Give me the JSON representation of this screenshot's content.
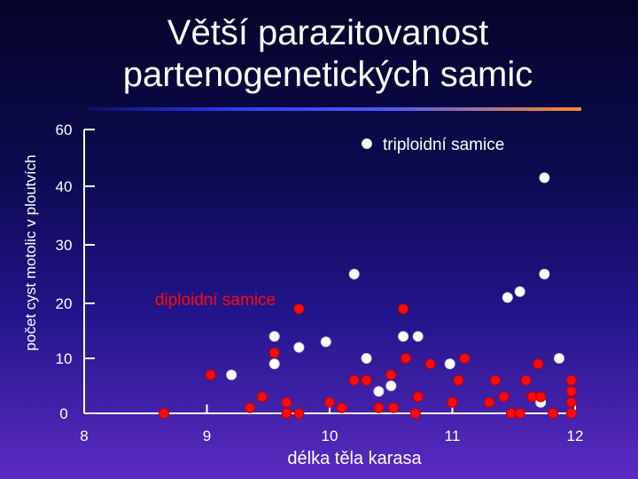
{
  "title": "Větší parazitovanost partenogenetických samic",
  "chart_data": {
    "type": "scatter",
    "xlabel": "délka těla karasa",
    "ylabel": "počet cyst motolic v ploutvích",
    "x_ticks": [
      8,
      9,
      10,
      11,
      12
    ],
    "y_ticks": [
      0,
      10,
      20,
      30,
      40,
      60
    ],
    "y_scale_note": "axis gap between 40 and 60",
    "xlim": [
      8,
      12
    ],
    "ylim": [
      0,
      60
    ],
    "legend_position": "top-right",
    "series": [
      {
        "name": "triploidní samice",
        "color": "#ffffff",
        "legend_label": true,
        "points": [
          [
            9.2,
            7
          ],
          [
            9.55,
            14
          ],
          [
            9.55,
            9
          ],
          [
            9.75,
            12
          ],
          [
            9.97,
            13
          ],
          [
            10.2,
            25
          ],
          [
            10.3,
            10
          ],
          [
            10.4,
            4
          ],
          [
            10.5,
            5
          ],
          [
            10.6,
            14
          ],
          [
            10.72,
            14
          ],
          [
            10.98,
            9
          ],
          [
            11.45,
            21
          ],
          [
            11.55,
            22
          ],
          [
            11.75,
            25
          ],
          [
            11.87,
            10
          ],
          [
            11.72,
            2
          ],
          [
            11.75,
            43
          ]
        ]
      },
      {
        "name": "diploidní samice",
        "color": "#ff0a0a",
        "legend_label": false,
        "annotation": "diploidní samice",
        "points": [
          [
            8.65,
            0
          ],
          [
            9.03,
            7
          ],
          [
            9.35,
            1
          ],
          [
            9.45,
            3
          ],
          [
            9.55,
            11
          ],
          [
            9.65,
            2
          ],
          [
            9.65,
            0
          ],
          [
            9.75,
            0
          ],
          [
            9.75,
            19
          ],
          [
            10.0,
            2
          ],
          [
            10.1,
            1
          ],
          [
            10.2,
            6
          ],
          [
            10.3,
            6
          ],
          [
            10.4,
            1
          ],
          [
            10.5,
            7
          ],
          [
            10.52,
            1
          ],
          [
            10.6,
            19
          ],
          [
            10.62,
            10
          ],
          [
            10.7,
            0
          ],
          [
            10.72,
            3
          ],
          [
            10.82,
            9
          ],
          [
            11.0,
            2
          ],
          [
            11.05,
            6
          ],
          [
            11.1,
            10
          ],
          [
            11.3,
            2
          ],
          [
            11.35,
            6
          ],
          [
            11.42,
            3
          ],
          [
            11.48,
            0
          ],
          [
            11.55,
            0
          ],
          [
            11.6,
            6
          ],
          [
            11.65,
            3
          ],
          [
            11.7,
            9
          ],
          [
            11.72,
            3
          ],
          [
            11.82,
            0
          ],
          [
            11.97,
            6
          ],
          [
            11.97,
            4
          ],
          [
            11.97,
            2
          ],
          [
            11.97,
            0
          ]
        ]
      }
    ]
  }
}
